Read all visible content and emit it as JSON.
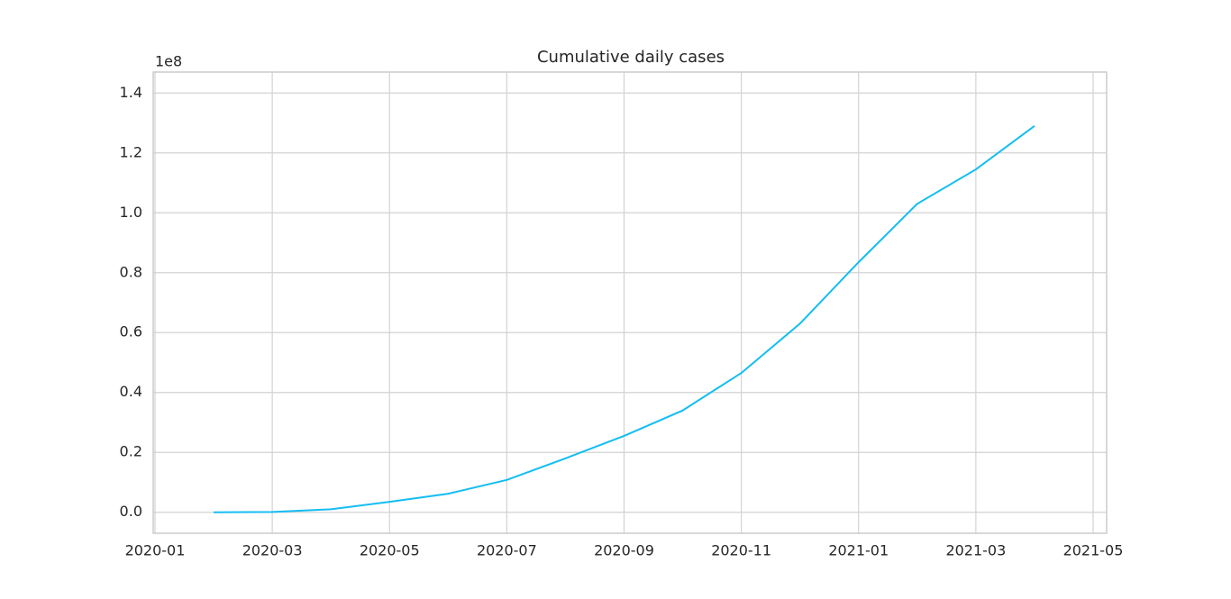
{
  "chart_data": {
    "type": "line",
    "title": "Cumulative daily cases",
    "y_offset_label": "1e8",
    "x": [
      "2020-02",
      "2020-03",
      "2020-04",
      "2020-05",
      "2020-06",
      "2020-07",
      "2020-08",
      "2020-09",
      "2020-10",
      "2020-11",
      "2020-12",
      "2021-01",
      "2021-02",
      "2021-03",
      "2021-04"
    ],
    "series": [
      {
        "name": "Cumulative daily cases",
        "color": "#13bdf2",
        "values": [
          10000,
          90000,
          1000000,
          3500000,
          6200000,
          10800000,
          18000000,
          25500000,
          34000000,
          46500000,
          63000000,
          83500000,
          103000000,
          114500000,
          129000000
        ]
      }
    ],
    "xlim": [
      "2020-01",
      "2021-05"
    ],
    "xticks": [
      "2020-01",
      "2020-03",
      "2020-05",
      "2020-07",
      "2020-09",
      "2020-11",
      "2021-01",
      "2021-03",
      "2021-05"
    ],
    "ylim": [
      -7000000,
      147000000
    ],
    "yticks": [
      {
        "value": 0,
        "label": "0.0"
      },
      {
        "value": 20000000,
        "label": "0.2"
      },
      {
        "value": 40000000,
        "label": "0.4"
      },
      {
        "value": 60000000,
        "label": "0.6"
      },
      {
        "value": 80000000,
        "label": "0.8"
      },
      {
        "value": 100000000,
        "label": "1.0"
      },
      {
        "value": 120000000,
        "label": "1.2"
      },
      {
        "value": 140000000,
        "label": "1.4"
      }
    ],
    "grid": true
  }
}
